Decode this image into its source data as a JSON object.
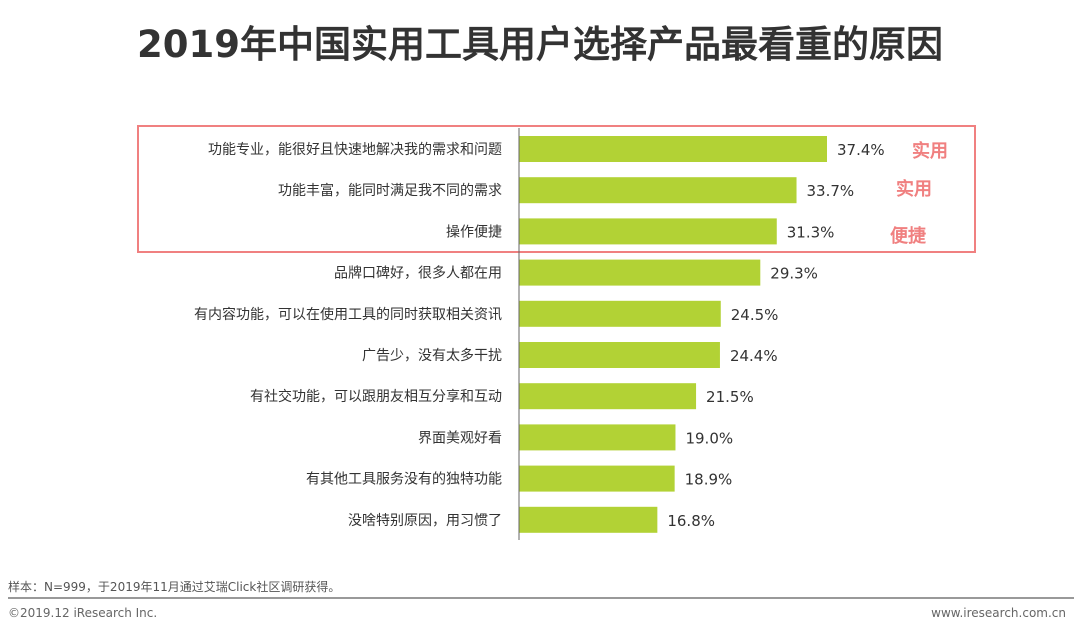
{
  "chart_data": {
    "type": "bar",
    "orientation": "horizontal",
    "title": "2019年中国实用工具用户选择产品最看重的原因",
    "categories": [
      "功能专业，能很好且快速地解决我的需求和问题",
      "功能丰富，能同时满足我不同的需求",
      "操作便捷",
      "品牌口碑好，很多人都在用",
      "有内容功能，可以在使用工具的同时获取相关资讯",
      "广告少，没有太多干扰",
      "有社交功能，可以跟朋友相互分享和互动",
      "界面美观好看",
      "有其他工具服务没有的独特功能",
      "没啥特别原因，用习惯了"
    ],
    "values": [
      37.4,
      33.7,
      31.3,
      29.3,
      24.5,
      24.4,
      21.5,
      19.0,
      18.9,
      16.8
    ],
    "data_labels": [
      "37.4%",
      "33.7%",
      "31.3%",
      "29.3%",
      "24.5%",
      "24.4%",
      "21.5%",
      "19.0%",
      "18.9%",
      "16.8%"
    ],
    "annotations": [
      "实用",
      "实用",
      "便捷"
    ],
    "bar_color": "#b2d235",
    "highlight_color": "#f08080",
    "xlim": [
      0,
      40
    ],
    "grid": false
  },
  "footer": {
    "source": "样本：N=999，于2019年11月通过艾瑞Click社区调研获得。",
    "copyright": "©2019.12 iResearch Inc.",
    "website": "www.iresearch.com.cn"
  }
}
